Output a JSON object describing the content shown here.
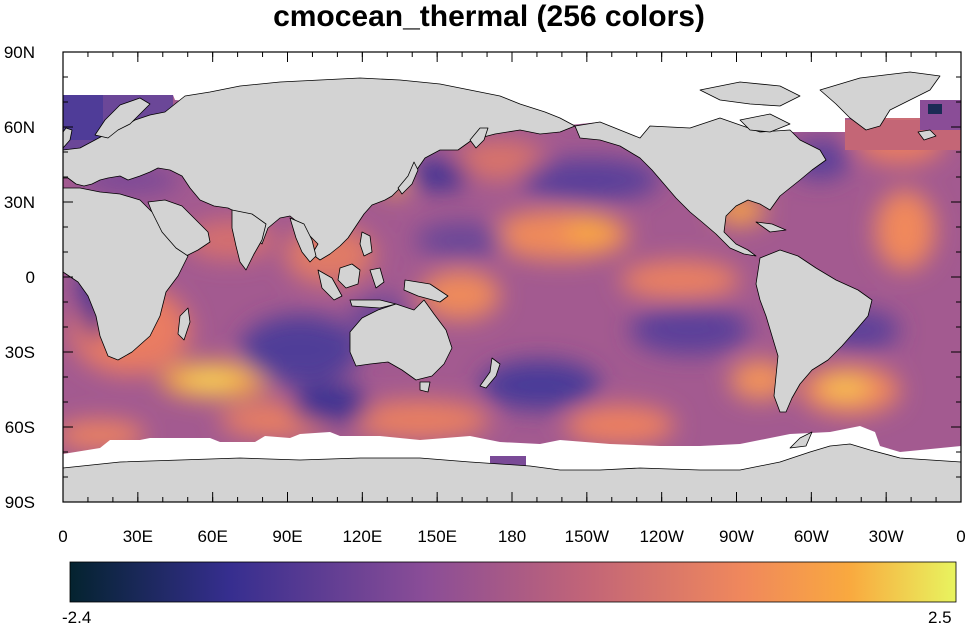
{
  "title": "cmocean_thermal (256 colors)",
  "map": {
    "projection": "cylindrical-equidistant",
    "lon_range": [
      0,
      360
    ],
    "lat_range": [
      -90,
      90
    ],
    "land_color": "#d3d3d3",
    "missing_color": "#ffffff",
    "y_ticks": [
      {
        "lat": 90,
        "label": "90N"
      },
      {
        "lat": 60,
        "label": "60N"
      },
      {
        "lat": 30,
        "label": "30N"
      },
      {
        "lat": 0,
        "label": "0"
      },
      {
        "lat": -30,
        "label": "30S"
      },
      {
        "lat": -60,
        "label": "60S"
      },
      {
        "lat": -90,
        "label": "90S"
      }
    ],
    "x_ticks": [
      {
        "lon": 0,
        "label": "0"
      },
      {
        "lon": 30,
        "label": "30E"
      },
      {
        "lon": 60,
        "label": "60E"
      },
      {
        "lon": 90,
        "label": "90E"
      },
      {
        "lon": 120,
        "label": "120E"
      },
      {
        "lon": 150,
        "label": "150E"
      },
      {
        "lon": 180,
        "label": "180"
      },
      {
        "lon": 210,
        "label": "150W"
      },
      {
        "lon": 240,
        "label": "120W"
      },
      {
        "lon": 270,
        "label": "90W"
      },
      {
        "lon": 300,
        "label": "60W"
      },
      {
        "lon": 330,
        "label": "30W"
      },
      {
        "lon": 360,
        "label": "0"
      }
    ]
  },
  "colorbar": {
    "min_label": "-2.4",
    "max_label": "2.5",
    "min": -2.4,
    "max": 2.5,
    "colors": [
      "#04232f",
      "#362e8f",
      "#8a4d97",
      "#c16478",
      "#f0885c",
      "#f9a93f",
      "#e8f45f"
    ]
  }
}
